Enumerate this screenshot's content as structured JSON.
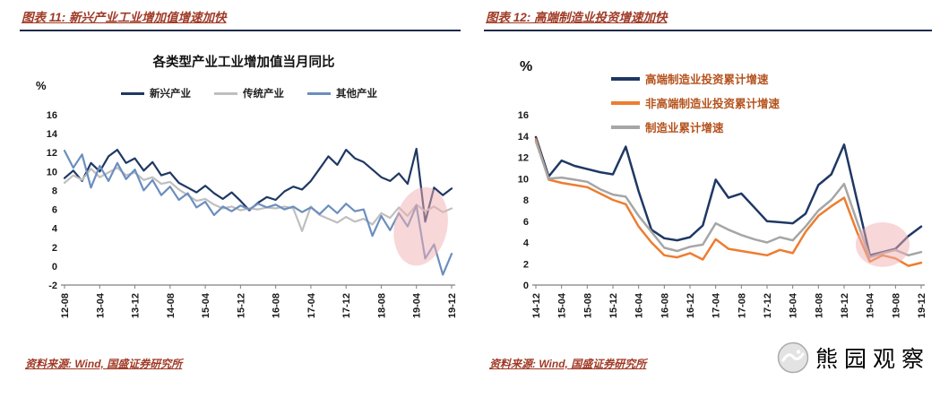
{
  "colors": {
    "header_red": "#A03A26",
    "rule_navy": "#1B2A4A",
    "axis_text": "#1A1A1A",
    "axis_line": "#7F7F7F",
    "highlight_pink": "#F2AFB4"
  },
  "left_panel": {
    "header": "图表 11: 新兴产业工业增加值增速加快",
    "unit_label": "%",
    "source": "资料来源: Wind, 国盛证券研究所"
  },
  "right_panel": {
    "header": "图表 12: 高端制造业投资增速加快",
    "unit_label": "%",
    "source": "资料来源: Wind, 国盛证券研究所"
  },
  "watermark": {
    "text": "熊园观察"
  },
  "chart_data": [
    {
      "type": "line",
      "title": "各类型产业工业增加值当月同比",
      "xlabel": "",
      "ylabel": "%",
      "ylim": [
        -2,
        16
      ],
      "ytick_step": 2,
      "grid": false,
      "legend_position": "top",
      "legend_text_color": "#222222",
      "x_tick_labels": [
        "12-08",
        "13-04",
        "13-12",
        "14-08",
        "15-04",
        "15-12",
        "16-08",
        "17-04",
        "17-12",
        "18-08",
        "19-04",
        "19-12"
      ],
      "x_tick_step_points": 4,
      "x_sampling": "every 2 months from 12-08 to 19-12",
      "series": [
        {
          "name": "新兴产业",
          "color": "#1F3864",
          "values": [
            9.3,
            10.1,
            9.0,
            10.9,
            10.0,
            11.6,
            12.3,
            10.9,
            11.4,
            10.1,
            11.0,
            9.6,
            9.9,
            8.8,
            8.3,
            7.8,
            8.5,
            7.7,
            7.1,
            7.8,
            6.9,
            5.9,
            6.7,
            7.3,
            7.0,
            7.9,
            8.4,
            8.1,
            9.0,
            10.3,
            11.6,
            10.7,
            12.3,
            11.4,
            11.0,
            10.2,
            9.4,
            9.0,
            9.8,
            8.7,
            12.4,
            4.7,
            8.3,
            7.5,
            8.2
          ]
        },
        {
          "name": "传统产业",
          "color": "#BFBFBF",
          "values": [
            8.8,
            9.6,
            9.1,
            10.3,
            9.4,
            9.9,
            10.4,
            9.6,
            9.9,
            9.1,
            9.4,
            8.7,
            8.9,
            8.1,
            7.5,
            6.9,
            7.1,
            6.5,
            6.1,
            6.3,
            5.9,
            6.1,
            6.0,
            6.2,
            6.1,
            6.3,
            6.1,
            3.7,
            6.3,
            5.4,
            5.0,
            4.6,
            5.2,
            4.7,
            5.0,
            4.4,
            5.6,
            5.1,
            6.2,
            5.3,
            6.5,
            5.8,
            6.3,
            5.7,
            6.1
          ]
        },
        {
          "name": "其他产业",
          "color": "#6C8EBF",
          "values": [
            12.2,
            10.4,
            11.8,
            8.3,
            10.6,
            9.0,
            10.9,
            9.2,
            10.2,
            8.0,
            9.1,
            7.5,
            8.4,
            7.0,
            7.7,
            6.2,
            6.8,
            5.4,
            6.3,
            5.8,
            6.4,
            6.0,
            6.6,
            6.2,
            6.5,
            6.0,
            6.3,
            5.7,
            6.2,
            5.5,
            6.4,
            5.6,
            6.6,
            5.8,
            6.0,
            3.2,
            5.3,
            3.8,
            5.6,
            4.2,
            6.4,
            0.8,
            2.3,
            -0.9,
            1.3
          ]
        }
      ],
      "highlight_ellipse": {
        "x_center_index": 40.5,
        "y_center": 4.2,
        "rx_indices": 3.0,
        "ry_units": 4.2,
        "rotate_deg": 12,
        "color": "#F2AFB4",
        "opacity": 0.5
      }
    },
    {
      "type": "line",
      "title": "",
      "xlabel": "",
      "ylabel": "%",
      "ylim": [
        0,
        16
      ],
      "ytick_step": 2,
      "grid": false,
      "legend_position": "top",
      "legend_text_color": "#B5531E",
      "x_tick_labels": [
        "14-12",
        "15-04",
        "15-08",
        "15-12",
        "16-04",
        "16-08",
        "16-12",
        "17-04",
        "17-08",
        "17-12",
        "18-04",
        "18-08",
        "18-12",
        "19-04",
        "19-08",
        "19-12"
      ],
      "x_tick_step_points": 2,
      "x_sampling": "every 2 months from 14-12 to 19-12",
      "series": [
        {
          "name": "高端制造业投资累计增速",
          "color": "#1F3864",
          "values": [
            13.9,
            10.2,
            11.7,
            11.2,
            10.9,
            10.6,
            10.4,
            13.0,
            8.8,
            5.2,
            4.4,
            4.2,
            4.5,
            5.6,
            9.9,
            8.2,
            8.6,
            7.3,
            6.0,
            5.9,
            5.8,
            6.7,
            9.4,
            10.4,
            13.2,
            8.0,
            2.8,
            3.1,
            3.4,
            4.6,
            5.5
          ]
        },
        {
          "name": "非高端制造业投资累计增速",
          "color": "#ED7D31",
          "values": [
            13.7,
            9.9,
            9.6,
            9.4,
            9.2,
            8.6,
            8.0,
            7.6,
            5.5,
            4.0,
            2.8,
            2.6,
            3.0,
            2.4,
            4.3,
            3.4,
            3.2,
            3.0,
            2.8,
            3.3,
            3.0,
            5.0,
            6.5,
            7.4,
            8.2,
            5.0,
            2.2,
            2.8,
            2.5,
            1.8,
            2.1
          ]
        },
        {
          "name": "制造业累计增速",
          "color": "#A6A6A6",
          "values": [
            13.5,
            10.0,
            10.1,
            9.9,
            9.7,
            9.0,
            8.5,
            8.3,
            6.5,
            5.0,
            3.5,
            3.2,
            3.6,
            3.8,
            5.8,
            5.2,
            4.7,
            4.3,
            4.0,
            4.5,
            4.2,
            5.5,
            7.0,
            8.0,
            9.5,
            6.0,
            2.6,
            3.0,
            3.3,
            2.8,
            3.1
          ]
        }
      ],
      "highlight_ellipse": {
        "x_center_index": 27.0,
        "y_center": 3.8,
        "rx_indices": 2.1,
        "ry_units": 2.1,
        "rotate_deg": 0,
        "color": "#F2AFB4",
        "opacity": 0.5
      }
    }
  ]
}
